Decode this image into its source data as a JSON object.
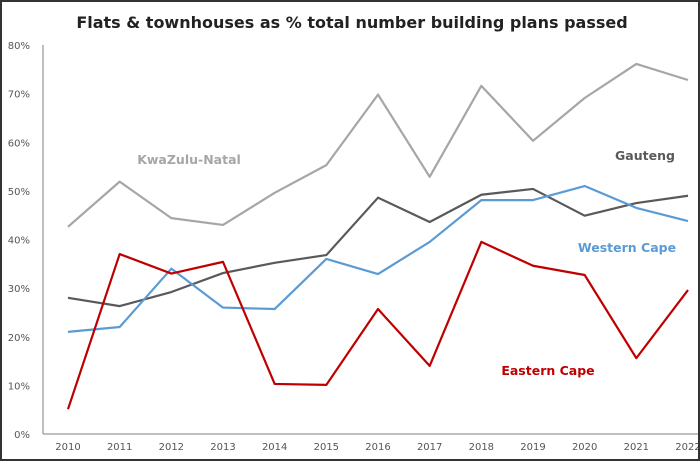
{
  "chart_data": {
    "type": "line",
    "title": "Flats & townhouses as % total number building plans passed",
    "xlabel": "",
    "ylabel": "",
    "categories": [
      "2010",
      "2011",
      "2012",
      "2013",
      "2014",
      "2015",
      "2016",
      "2017",
      "2018",
      "2019",
      "2020",
      "2021",
      "2022"
    ],
    "ylim": [
      0,
      80
    ],
    "yticks": [
      "0%",
      "10%",
      "20%",
      "30%",
      "40%",
      "50%",
      "60%",
      "70%",
      "80%"
    ],
    "grid": false,
    "legend": "inline labels",
    "series": [
      {
        "name": "KwaZulu-Natal",
        "color": "#a6a6a6",
        "values": [
          42.6,
          51.9,
          44.4,
          43.0,
          49.6,
          55.3,
          69.8,
          52.9,
          71.6,
          60.3,
          69.1,
          76.1,
          72.8
        ]
      },
      {
        "name": "Gauteng",
        "color": "#595959",
        "values": [
          28.0,
          26.3,
          29.2,
          33.1,
          35.2,
          36.8,
          48.6,
          43.6,
          49.2,
          50.4,
          44.9,
          47.5,
          49.0
        ]
      },
      {
        "name": "Western Cape",
        "color": "#5b9bd5",
        "values": [
          21.0,
          22.0,
          34.0,
          26.0,
          25.7,
          36.0,
          32.9,
          39.5,
          48.1,
          48.1,
          51.0,
          46.5,
          43.8
        ]
      },
      {
        "name": "Eastern Cape",
        "color": "#c00000",
        "values": [
          5.1,
          37.0,
          33.0,
          35.4,
          10.3,
          10.1,
          25.7,
          14.0,
          39.5,
          34.6,
          32.7,
          15.6,
          29.6
        ]
      }
    ]
  }
}
